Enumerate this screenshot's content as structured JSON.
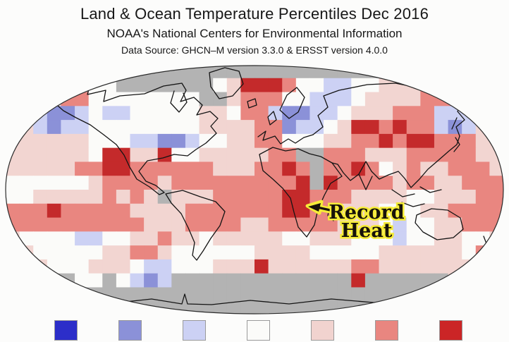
{
  "header": {
    "title": "Land & Ocean Temperature Percentiles Dec 2016",
    "subtitle": "NOAA's National Centers for Environmental Information",
    "datasource": "Data Source: GHCN–M version 3.3.0 & ERSST version 4.0.0"
  },
  "annotation": {
    "line1": "Record",
    "line2": "Heat"
  },
  "legend": {
    "swatches": [
      {
        "name": "dark-blue",
        "color": "#2c2ec9"
      },
      {
        "name": "medium-blue",
        "color": "#8b91d8"
      },
      {
        "name": "light-blue",
        "color": "#ccd1f4"
      },
      {
        "name": "white",
        "color": "#fbfbf9"
      },
      {
        "name": "light-pink",
        "color": "#f1d3cf"
      },
      {
        "name": "medium-red",
        "color": "#e98680"
      },
      {
        "name": "dark-red",
        "color": "#cb2526"
      }
    ]
  },
  "chart_data": {
    "type": "heatmap",
    "title": "Land & Ocean Temperature Percentiles Dec 2016",
    "subtitle": "NOAA's National Centers for Environmental Information",
    "source": "Data Source: GHCN–M version 3.3.0 & ERSST version 4.0.0",
    "projection": "robinson-like world map, gridded ~10-degree percentile cells",
    "annotation": {
      "text": "Record Heat",
      "points_to": "East Africa dark-red cells"
    },
    "legend_colors_left_to_right": [
      "#2c2ec9",
      "#8b91d8",
      "#ccd1f4",
      "#fbfbf9",
      "#f1d3cf",
      "#e98680",
      "#cb2526"
    ],
    "palette": {
      "g": "#b3b3b3",
      "w": "#fbfbf9",
      "p": "#f2d5d1",
      "r": "#e98680",
      "R": "#c42a2b",
      "l": "#ccd1f4",
      "b": "#8b91d8",
      "B": "#2c2ec9",
      ".": null
    },
    "palette_meaning": {
      "g": "gray cell (no data)",
      "w": "white cell",
      "p": "light-pink cell",
      "r": "medium-red cell",
      "R": "dark-red cell",
      "l": "light-blue cell",
      "b": "medium-blue cell",
      "B": "dark-blue cell",
      ".": "outside map"
    },
    "grid": {
      "cols": 36,
      "rows": 18,
      "cell_codes": [
        "...ggggggggggggggggggggggggggggggg..",
        "...prpwwgggggggwpRRRrwwllwwppprrpp..",
        "..pprrwwwwwwwwggprrrwwlllwpppprrrpp.",
        ".plbblwllwwwwwppwrrlbbllwppprrrlllp.",
        "pplbllwwwwwwwwpppprrbllwpRRrRrrlblpp",
        "ppppppwwwllbblwwpprrwwwpprrRrRRrrrpp",
        "ppppppwRRppRwwppppprrggrrrppprrrrrpp",
        "ppppprrRRrrrrrrppprrRrgrrRrwprpprrrp",
        "wwwwwwprrrrprrrrrrrrrRgRrrrrprrpprrr",
        "wwppppprprpgppprrrrrRRrrrppppwwppprr",
        "rrrRrrrrrpppprrrrrrrRRrrpppwwwpprrrr",
        "rrrrrrrrrrppprrrrpprrrrrpppwlwwpprrr",
        "pwwwwllwwpprppwpppppwwpppwwwlwwppwwp",
        "ppwwwwwpprrpwwwwwwppppwwwwwppppppwrr",
        ".ppwwwpppwllwwwpppRpppppprrpppppppp.",
        "..pggwwgwlblgggggggggggggRggggggpp..",
        "..gggggggggggggggggggggggggggggggg..",
        "....gggggggggggggggggggggggggggg...."
      ]
    }
  },
  "colors": {
    "page_background": "#fcfcfb",
    "map_outline": "#2b2b2b",
    "coastline": "#141414",
    "annotation_fill": "#17120a",
    "annotation_halo": "#f6ec38",
    "missing_data_gray": "#b3b3b3"
  }
}
